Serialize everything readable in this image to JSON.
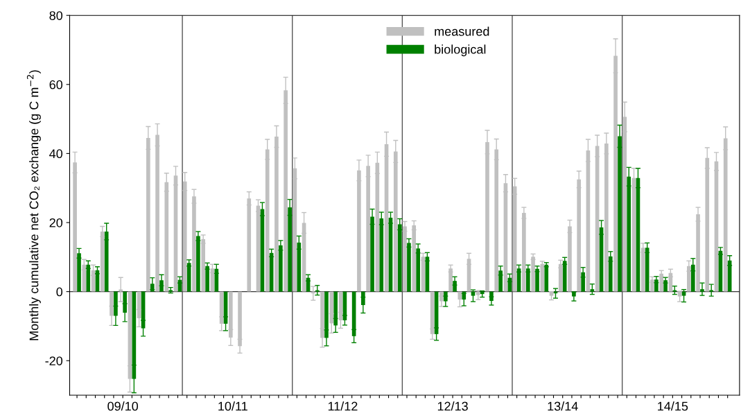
{
  "chart_data": {
    "type": "bar",
    "ylabel": "Monthly cumulative net CO₂ exchange (g C m$^{−2}$)",
    "categories": [
      null,
      null,
      null,
      null,
      null,
      "09/10",
      null,
      null,
      null,
      null,
      null,
      null,
      null,
      null,
      null,
      null,
      null,
      "10/11",
      null,
      null,
      null,
      null,
      null,
      null,
      null,
      null,
      null,
      null,
      null,
      "11/12",
      null,
      null,
      null,
      null,
      null,
      null,
      null,
      null,
      null,
      null,
      null,
      "12/13",
      null,
      null,
      null,
      null,
      null,
      null,
      null,
      null,
      null,
      null,
      null,
      "13/14",
      null,
      null,
      null,
      null,
      null,
      null,
      null,
      null,
      null,
      null,
      null,
      "14/15",
      null,
      null,
      null,
      null,
      null,
      null
    ],
    "ylim": [
      -30,
      80
    ],
    "yticks": [
      -20,
      0,
      20,
      40,
      60,
      80
    ],
    "legend": "top",
    "ref_lines": [
      {
        "axis": "y",
        "value": 0,
        "color": "#333333"
      }
    ],
    "series": [
      {
        "name": "measured",
        "color": "#c0c0c0",
        "values": [
          37.4,
          7.8,
          6.2,
          17.4,
          -7,
          0.6,
          -25.3,
          -7.7,
          44.5,
          45.4,
          31.7,
          33.6,
          31.9,
          27.6,
          15.2,
          6.7,
          -9.3,
          -13.3,
          -15.8,
          27,
          24.9,
          41.2,
          44.9,
          58.3,
          35.7,
          19.9,
          -0.5,
          -13.4,
          -9.2,
          -8.3,
          null,
          35.1,
          36.4,
          37.3,
          42.7,
          40.6,
          18.9,
          19.2,
          10.1,
          -12.3,
          -2.8,
          6.7,
          -2.3,
          9.5,
          -1,
          43.3,
          41.2,
          31.4,
          30.5,
          22.8,
          10.1,
          8,
          -1.2,
          8,
          18.9,
          32.5,
          40.9,
          42.2,
          42.9,
          68.3,
          50.6,
          32.9,
          12.7,
          3.5,
          5.2,
          5.4,
          -1.4,
          7.4,
          22.4,
          38.7,
          37.7,
          44.4
        ],
        "errors": [
          3,
          1.5,
          1.5,
          1.5,
          2.8,
          3.5,
          3.8,
          2.5,
          3.3,
          3.2,
          2.6,
          2.7,
          2.6,
          2,
          1.2,
          1.2,
          2,
          2.3,
          2,
          1.9,
          1.7,
          2.9,
          3.1,
          3.8,
          3,
          3,
          2,
          2.7,
          2.8,
          2.3,
          null,
          3,
          3.1,
          3.1,
          3.5,
          3.2,
          1.4,
          1.3,
          1,
          1.5,
          1.5,
          1,
          2.1,
          1.6,
          1.3,
          3.4,
          3,
          2.5,
          2.3,
          1.6,
          0.8,
          0.8,
          1.2,
          1.1,
          1.8,
          2.4,
          3.2,
          3.1,
          3,
          4.9,
          4.3,
          2.8,
          1.3,
          0.8,
          0.9,
          1.1,
          1.5,
          1.5,
          2,
          3,
          2.6,
          3.3
        ]
      },
      {
        "name": "biological",
        "color": "#008000",
        "values": [
          11.1,
          7.8,
          6.2,
          17.4,
          -7,
          -6.1,
          -25.3,
          -10.6,
          2.3,
          3.3,
          0.4,
          3.4,
          8.3,
          16.1,
          7.4,
          6.6,
          -9.3,
          null,
          null,
          null,
          23.9,
          11.2,
          13.4,
          24.4,
          14.2,
          4,
          0.4,
          -13.4,
          -9.8,
          -8.3,
          -12.9,
          -3.9,
          21.7,
          21.2,
          21.4,
          19.5,
          14.1,
          12.5,
          10.1,
          -12.3,
          -2.8,
          3.1,
          -2.3,
          -1.2,
          -0.7,
          -2.7,
          6.1,
          4,
          6.7,
          6.7,
          6.6,
          7.8,
          -0.5,
          8.9,
          -1.4,
          5.6,
          0.7,
          18.6,
          10.2,
          45,
          33.3,
          32.9,
          12.7,
          3.5,
          3.3,
          0.4,
          -1.2,
          7.8,
          0.7,
          0.4,
          11.8,
          9
        ],
        "errors": [
          1.4,
          1.1,
          1,
          2.4,
          2.8,
          2.6,
          4,
          2.3,
          1.7,
          1.6,
          0.8,
          0.9,
          0.9,
          1.3,
          0.9,
          1.3,
          2,
          null,
          null,
          null,
          1.9,
          1.1,
          1.4,
          2.3,
          1.9,
          0.9,
          1.4,
          2.3,
          2,
          1.4,
          1.9,
          2.3,
          2.2,
          1.8,
          1.6,
          1.6,
          1.2,
          1.3,
          1.2,
          1.8,
          1.5,
          1.2,
          1.8,
          1.7,
          0.9,
          1.2,
          1.3,
          1.1,
          1,
          1,
          0.8,
          0.6,
          1.4,
          1,
          1.3,
          1.4,
          1.5,
          2,
          1.4,
          3.2,
          2.7,
          2.8,
          1.4,
          0.9,
          0.8,
          1.2,
          1.8,
          1.8,
          1.8,
          1.7,
          1,
          1.4
        ]
      }
    ]
  }
}
